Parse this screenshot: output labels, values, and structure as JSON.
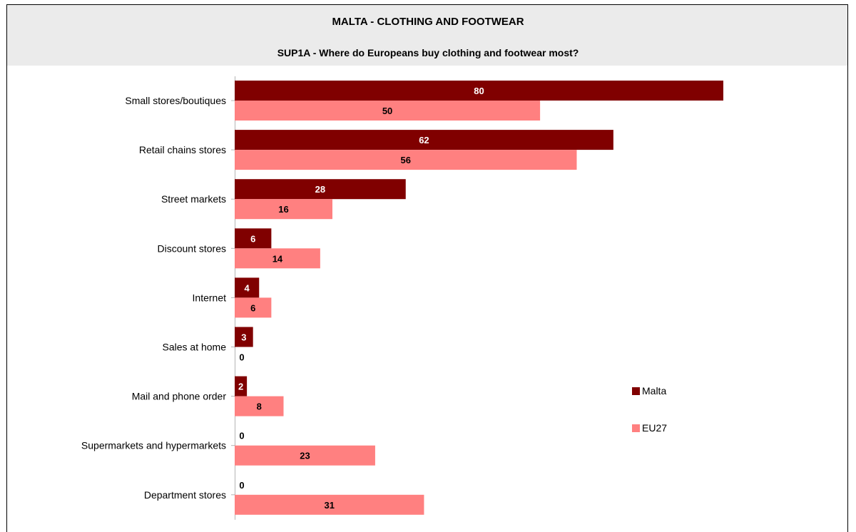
{
  "colors": {
    "malta": "#800000",
    "eu27": "#ff8080",
    "header_bg": "#ebebeb"
  },
  "chart_data": {
    "type": "bar",
    "orientation": "horizontal",
    "title": "MALTA - CLOTHING AND FOOTWEAR",
    "subtitle": "SUP1A - Where do Europeans buy clothing and footwear most?",
    "categories": [
      "Small stores/boutiques",
      "Retail chains stores",
      "Street markets",
      "Discount stores",
      "Internet",
      "Sales at home",
      "Mail and phone order",
      "Supermarkets and hypermarkets",
      "Department stores"
    ],
    "series": [
      {
        "name": "Malta",
        "values": [
          80,
          62,
          28,
          6,
          4,
          3,
          2,
          0,
          0
        ]
      },
      {
        "name": "EU27",
        "values": [
          50,
          56,
          16,
          14,
          6,
          0,
          8,
          23,
          31
        ]
      }
    ],
    "xlim": [
      0,
      80
    ],
    "grid": false,
    "legend_position": "right",
    "data_labels": true
  }
}
